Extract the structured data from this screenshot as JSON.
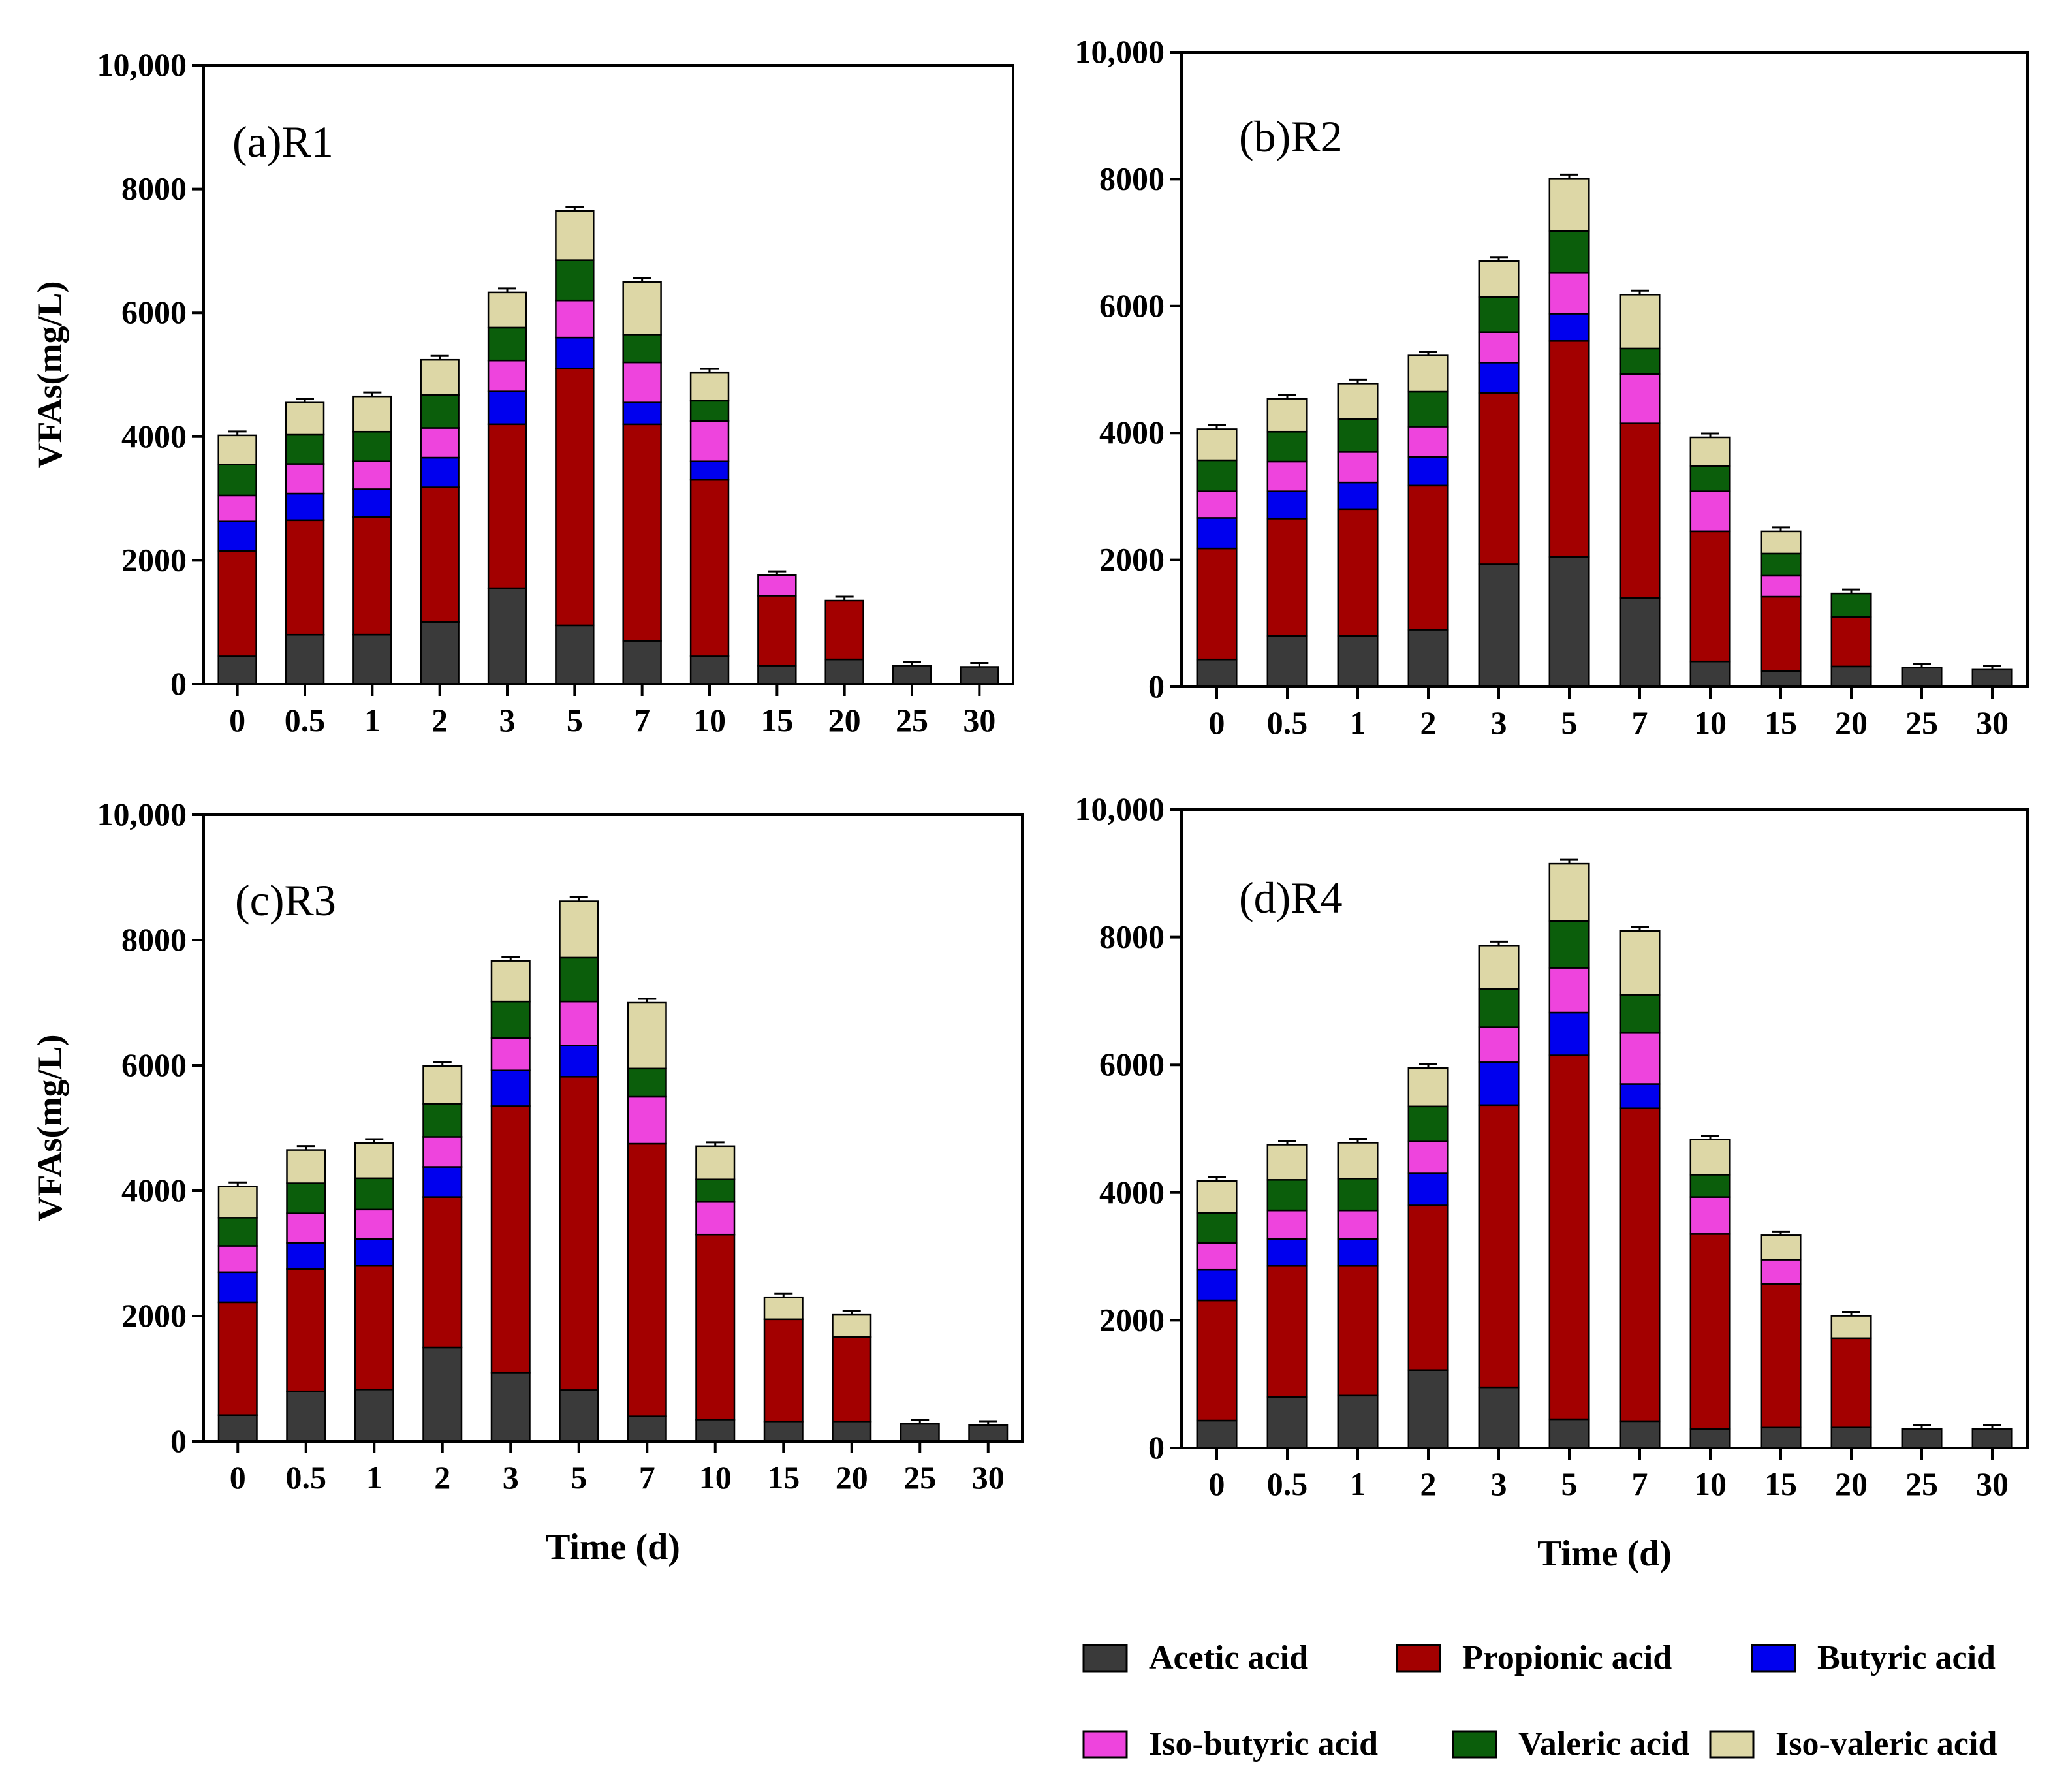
{
  "colors": {
    "Acetic acid": "#3a3a3a",
    "Propionic acid": "#a30000",
    "Butyric acid": "#0000ee",
    "Iso-butyric acid": "#ee44dd",
    "Valeric acid": "#0b5e0b",
    "Iso-valeric acid": "#ddd7a6"
  },
  "legend": {
    "items": [
      "Acetic acid",
      "Propionic acid",
      "Butyric acid",
      "Iso-butyric acid",
      "Valeric acid",
      "Iso-valeric acid"
    ]
  },
  "chart_data": [
    {
      "type": "bar",
      "stacked": true,
      "title": "(a)R1",
      "xlabel": "",
      "ylabel": "VFAs(mg/L)",
      "categories": [
        "0",
        "0.5",
        "1",
        "2",
        "3",
        "5",
        "7",
        "10",
        "15",
        "20",
        "25",
        "30"
      ],
      "yticks": [
        "0",
        "2000",
        "4000",
        "6000",
        "8000",
        "10,000"
      ],
      "ylim": [
        0,
        10000
      ],
      "series": [
        {
          "name": "Acetic acid",
          "values": [
            450,
            800,
            800,
            1000,
            1550,
            950,
            700,
            450,
            300,
            400,
            300,
            280
          ]
        },
        {
          "name": "Propionic acid",
          "values": [
            1700,
            1850,
            1900,
            2180,
            2650,
            4150,
            3500,
            2850,
            1130,
            950,
            0,
            0
          ]
        },
        {
          "name": "Butyric acid",
          "values": [
            480,
            430,
            450,
            480,
            530,
            500,
            350,
            300,
            0,
            0,
            0,
            0
          ]
        },
        {
          "name": "Iso-butyric acid",
          "values": [
            420,
            480,
            450,
            480,
            500,
            600,
            650,
            650,
            330,
            0,
            0,
            0
          ]
        },
        {
          "name": "Valeric acid",
          "values": [
            500,
            470,
            480,
            530,
            530,
            650,
            450,
            330,
            0,
            0,
            0,
            0
          ]
        },
        {
          "name": "Iso-valeric acid",
          "values": [
            470,
            520,
            570,
            570,
            570,
            800,
            850,
            450,
            0,
            0,
            0,
            0
          ]
        }
      ]
    },
    {
      "type": "bar",
      "stacked": true,
      "title": "(b)R2",
      "xlabel": "",
      "ylabel": "",
      "categories": [
        "0",
        "0.5",
        "1",
        "2",
        "3",
        "5",
        "7",
        "10",
        "15",
        "20",
        "25",
        "30"
      ],
      "yticks": [
        "0",
        "2000",
        "4000",
        "6000",
        "8000",
        "10,000"
      ],
      "ylim": [
        0,
        10000
      ],
      "series": [
        {
          "name": "Acetic acid",
          "values": [
            430,
            800,
            800,
            900,
            1930,
            2050,
            1400,
            400,
            250,
            320,
            300,
            270
          ]
        },
        {
          "name": "Propionic acid",
          "values": [
            1750,
            1850,
            2000,
            2270,
            2700,
            3400,
            2750,
            2050,
            1170,
            780,
            0,
            0
          ]
        },
        {
          "name": "Butyric acid",
          "values": [
            480,
            430,
            420,
            450,
            480,
            430,
            0,
            0,
            0,
            0,
            0,
            0
          ]
        },
        {
          "name": "Iso-butyric acid",
          "values": [
            420,
            470,
            480,
            480,
            480,
            650,
            780,
            630,
            330,
            0,
            0,
            0
          ]
        },
        {
          "name": "Valeric acid",
          "values": [
            490,
            470,
            520,
            550,
            550,
            650,
            400,
            400,
            350,
            370,
            0,
            0
          ]
        },
        {
          "name": "Iso-valeric acid",
          "values": [
            490,
            520,
            560,
            570,
            570,
            830,
            850,
            450,
            350,
            0,
            0,
            0
          ]
        }
      ]
    },
    {
      "type": "bar",
      "stacked": true,
      "title": "(c)R3",
      "xlabel": "Time (d)",
      "ylabel": "VFAs(mg/L)",
      "categories": [
        "0",
        "0.5",
        "1",
        "2",
        "3",
        "5",
        "7",
        "10",
        "15",
        "20",
        "25",
        "30"
      ],
      "yticks": [
        "0",
        "2000",
        "4000",
        "6000",
        "8000",
        "10,000"
      ],
      "ylim": [
        0,
        10000
      ],
      "series": [
        {
          "name": "Acetic acid",
          "values": [
            420,
            800,
            830,
            1500,
            1100,
            820,
            400,
            350,
            320,
            320,
            280,
            260
          ]
        },
        {
          "name": "Propionic acid",
          "values": [
            1800,
            1950,
            1970,
            2400,
            4250,
            5000,
            4350,
            2950,
            1630,
            1350,
            0,
            0
          ]
        },
        {
          "name": "Butyric acid",
          "values": [
            480,
            420,
            430,
            480,
            570,
            500,
            0,
            0,
            0,
            0,
            0,
            0
          ]
        },
        {
          "name": "Iso-butyric acid",
          "values": [
            420,
            470,
            470,
            480,
            520,
            700,
            750,
            530,
            0,
            0,
            0,
            0
          ]
        },
        {
          "name": "Valeric acid",
          "values": [
            450,
            480,
            500,
            530,
            580,
            700,
            450,
            350,
            0,
            0,
            0,
            0
          ]
        },
        {
          "name": "Iso-valeric acid",
          "values": [
            500,
            530,
            560,
            600,
            650,
            900,
            1050,
            530,
            350,
            350,
            0,
            0
          ]
        }
      ]
    },
    {
      "type": "bar",
      "stacked": true,
      "title": "(d)R4",
      "xlabel": "Time (d)",
      "ylabel": "",
      "categories": [
        "0",
        "0.5",
        "1",
        "2",
        "3",
        "5",
        "7",
        "10",
        "15",
        "20",
        "25",
        "30"
      ],
      "yticks": [
        "0",
        "2000",
        "4000",
        "6000",
        "8000",
        "10,000"
      ],
      "ylim": [
        0,
        10000
      ],
      "series": [
        {
          "name": "Acetic acid",
          "values": [
            430,
            800,
            820,
            1220,
            950,
            450,
            420,
            300,
            320,
            320,
            300,
            300
          ]
        },
        {
          "name": "Propionic acid",
          "values": [
            1880,
            2050,
            2030,
            2580,
            4420,
            5700,
            4900,
            3050,
            2250,
            1400,
            0,
            0
          ]
        },
        {
          "name": "Butyric acid",
          "values": [
            480,
            420,
            420,
            500,
            670,
            670,
            380,
            0,
            0,
            0,
            0,
            0
          ]
        },
        {
          "name": "Iso-butyric acid",
          "values": [
            420,
            450,
            450,
            500,
            550,
            700,
            800,
            580,
            380,
            0,
            0,
            0
          ]
        },
        {
          "name": "Valeric acid",
          "values": [
            470,
            480,
            500,
            550,
            600,
            730,
            600,
            350,
            0,
            0,
            0,
            0
          ]
        },
        {
          "name": "Iso-valeric acid",
          "values": [
            500,
            550,
            560,
            600,
            680,
            900,
            1000,
            550,
            380,
            350,
            0,
            0
          ]
        }
      ]
    }
  ]
}
